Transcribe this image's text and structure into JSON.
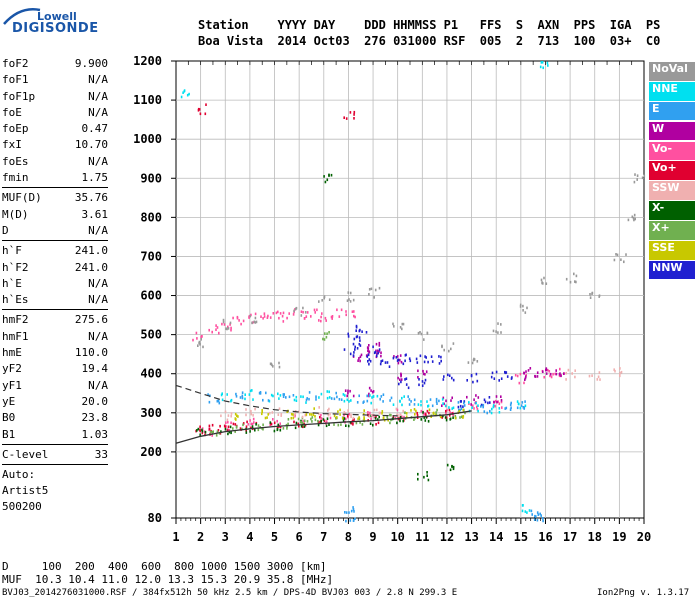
{
  "logo": {
    "top": "Lowell",
    "main": "DIGISONDE"
  },
  "header": {
    "line1": "Station    YYYY DAY    DDD HHMMSS P1   FFS  S  AXN  PPS  IGA  PS",
    "line2": "Boa Vista  2014 Oct03  276 031000 RSF  005  2  713  100  03+  C0"
  },
  "params": {
    "group1": [
      [
        "foF2",
        "9.900"
      ],
      [
        "foF1",
        "N/A"
      ],
      [
        "foF1p",
        "N/A"
      ],
      [
        "foE",
        "N/A"
      ],
      [
        "foEp",
        "0.47"
      ],
      [
        "fxI",
        "10.70"
      ],
      [
        "foEs",
        "N/A"
      ],
      [
        "fmin",
        "1.75"
      ]
    ],
    "group2": [
      [
        "MUF(D)",
        "35.76"
      ],
      [
        "M(D)",
        "3.61"
      ],
      [
        "D",
        "N/A"
      ]
    ],
    "group3": [
      [
        "h`F",
        "241.0"
      ],
      [
        "h`F2",
        "241.0"
      ],
      [
        "h`E",
        "N/A"
      ],
      [
        "h`Es",
        "N/A"
      ]
    ],
    "group4": [
      [
        "hmF2",
        "275.6"
      ],
      [
        "hmF1",
        "N/A"
      ],
      [
        "hmE",
        "110.0"
      ],
      [
        "yF2",
        "19.4"
      ],
      [
        "yF1",
        "N/A"
      ],
      [
        "yE",
        "20.0"
      ],
      [
        "B0",
        "23.8"
      ],
      [
        "B1",
        "1.03"
      ]
    ],
    "group5": [
      [
        "C-level",
        "33"
      ]
    ],
    "auto": [
      "Auto:",
      "Artist5",
      "500200"
    ]
  },
  "legend": [
    {
      "label": "NoVal",
      "color": "#999999"
    },
    {
      "label": "NNE",
      "color": "#00e0f0"
    },
    {
      "label": "E",
      "color": "#30a0f0"
    },
    {
      "label": "W",
      "color": "#b000a0"
    },
    {
      "label": "Vo-",
      "color": "#ff50a0"
    },
    {
      "label": "Vo+",
      "color": "#e00030"
    },
    {
      "label": "SSW",
      "color": "#f0b0b0"
    },
    {
      "label": "X-",
      "color": "#006000"
    },
    {
      "label": "X+",
      "color": "#70b050"
    },
    {
      "label": "SSE",
      "color": "#c8c800"
    },
    {
      "label": "NNW",
      "color": "#2020d0"
    }
  ],
  "footer": {
    "line1": "D     100  200  400  600  800 1000 1500 3000 [km]",
    "line2": "MUF  10.3 10.4 11.0 12.0 13.3 15.3 20.9 35.8 [MHz]",
    "line3": "BVJ03_2014276031000.RSF / 384fx512h 50 kHz 2.5 km / DPS-4D BVJ03 003 / 2.8 N 299.3 E",
    "version": "Ion2Png v. 1.3.17"
  },
  "chart_data": {
    "type": "scatter",
    "x_ticks": [
      "1",
      "2",
      "3",
      "4",
      "5",
      "6",
      "7",
      "8",
      "9",
      "10",
      "11",
      "12",
      "13",
      "14",
      "15",
      "16",
      "17",
      "18",
      "19",
      "20"
    ],
    "y_ticks": [
      "80",
      "200",
      "300",
      "400",
      "500",
      "600",
      "700",
      "800",
      "900",
      "1000",
      "1100",
      "1200"
    ],
    "xlim": [
      1,
      20
    ],
    "ylim": [
      80,
      1200
    ],
    "grid": true,
    "legend_position": "right",
    "series": [
      {
        "name": "Vo-",
        "color": "#ff50a0",
        "points": [
          [
            1.9,
            500
          ],
          [
            2.5,
            515
          ],
          [
            3,
            525
          ],
          [
            3.5,
            540
          ],
          [
            4,
            545
          ],
          [
            4.5,
            550
          ],
          [
            5,
            555
          ],
          [
            5.5,
            548
          ],
          [
            6,
            555
          ],
          [
            6.5,
            560
          ],
          [
            7,
            550
          ],
          [
            7.5,
            555
          ],
          [
            8,
            560
          ],
          [
            2.2,
            258
          ],
          [
            3,
            270
          ],
          [
            4,
            275
          ],
          [
            5,
            280
          ],
          [
            6,
            285
          ],
          [
            7,
            288
          ],
          [
            8,
            290
          ],
          [
            9,
            292
          ],
          [
            10,
            300
          ],
          [
            11,
            305
          ],
          [
            12,
            310
          ],
          [
            13,
            320
          ],
          [
            14,
            325
          ],
          [
            15,
            390
          ],
          [
            16,
            400
          ],
          [
            16.5,
            405
          ]
        ]
      },
      {
        "name": "W",
        "color": "#b000a0",
        "points": [
          [
            8.3,
            440
          ],
          [
            8.6,
            460
          ],
          [
            9,
            470
          ],
          [
            9.3,
            450
          ],
          [
            10,
            400
          ],
          [
            11,
            400
          ],
          [
            12,
            330
          ],
          [
            13,
            335
          ],
          [
            14,
            340
          ],
          [
            15,
            400
          ],
          [
            15.5,
            405
          ],
          [
            16,
            410
          ],
          [
            16.5,
            405
          ],
          [
            8,
            350
          ],
          [
            9,
            355
          ],
          [
            10,
            440
          ]
        ]
      },
      {
        "name": "NNW",
        "color": "#2020d0",
        "points": [
          [
            8,
            460
          ],
          [
            8.3,
            480
          ],
          [
            8.7,
            440
          ],
          [
            9,
            460
          ],
          [
            9.5,
            430
          ],
          [
            10,
            440
          ],
          [
            10.5,
            445
          ],
          [
            11,
            440
          ],
          [
            11.5,
            435
          ],
          [
            10.2,
            380
          ],
          [
            11,
            385
          ],
          [
            12,
            388
          ],
          [
            13,
            390
          ],
          [
            14,
            395
          ],
          [
            14.5,
            400
          ],
          [
            12.5,
            330
          ],
          [
            13.5,
            335
          ],
          [
            8.2,
            500
          ],
          [
            8.5,
            520
          ]
        ]
      },
      {
        "name": "Vo+",
        "color": "#e00030",
        "points": [
          [
            2,
            255
          ],
          [
            2.5,
            260
          ],
          [
            3,
            262
          ],
          [
            3.5,
            265
          ],
          [
            4,
            268
          ],
          [
            5,
            272
          ],
          [
            6,
            276
          ],
          [
            7,
            280
          ],
          [
            8,
            283
          ],
          [
            9,
            286
          ],
          [
            10,
            290
          ],
          [
            11,
            295
          ],
          [
            12,
            300
          ],
          [
            8,
            1060
          ],
          [
            2,
            1080
          ]
        ]
      },
      {
        "name": "X-",
        "color": "#006000",
        "points": [
          [
            2,
            250
          ],
          [
            3,
            258
          ],
          [
            4,
            262
          ],
          [
            5,
            268
          ],
          [
            6,
            274
          ],
          [
            7,
            278
          ],
          [
            8,
            282
          ],
          [
            9,
            284
          ],
          [
            10,
            288
          ],
          [
            11,
            292
          ],
          [
            12,
            296
          ],
          [
            7.2,
            900
          ],
          [
            11,
            160
          ],
          [
            12,
            170
          ]
        ]
      },
      {
        "name": "X+",
        "color": "#70b050",
        "points": [
          [
            2.5,
            255
          ],
          [
            3.5,
            263
          ],
          [
            4.5,
            268
          ],
          [
            5.5,
            274
          ],
          [
            6.5,
            280
          ],
          [
            7.5,
            283
          ],
          [
            8.5,
            286
          ],
          [
            9.5,
            290
          ],
          [
            10.5,
            294
          ],
          [
            11.5,
            298
          ],
          [
            12.5,
            302
          ],
          [
            6,
            280
          ],
          [
            7,
            500
          ]
        ]
      },
      {
        "name": "NNE",
        "color": "#00e0f0",
        "points": [
          [
            3,
            345
          ],
          [
            4,
            348
          ],
          [
            5,
            345
          ],
          [
            6,
            342
          ],
          [
            7,
            345
          ],
          [
            8,
            343
          ],
          [
            9,
            340
          ],
          [
            10,
            335
          ],
          [
            11,
            330
          ],
          [
            12,
            325
          ],
          [
            13,
            320
          ],
          [
            14,
            310
          ],
          [
            15,
            320
          ],
          [
            16,
            1190
          ],
          [
            15.2,
            100
          ],
          [
            1.4,
            1120
          ]
        ]
      },
      {
        "name": "E",
        "color": "#30a0f0",
        "points": [
          [
            2.5,
            340
          ],
          [
            3.5,
            346
          ],
          [
            4.5,
            345
          ],
          [
            5.5,
            344
          ],
          [
            6.5,
            343
          ],
          [
            7.5,
            345
          ],
          [
            8.5,
            342
          ],
          [
            9.5,
            338
          ],
          [
            10.5,
            333
          ],
          [
            11.5,
            330
          ],
          [
            12.5,
            322
          ],
          [
            13.5,
            315
          ],
          [
            14.5,
            320
          ],
          [
            15,
            325
          ],
          [
            15.7,
            85
          ],
          [
            15.6,
            90
          ],
          [
            8,
            85
          ],
          [
            8,
            95
          ]
        ]
      },
      {
        "name": "SSW",
        "color": "#f0b0b0",
        "points": [
          [
            3,
            295
          ],
          [
            4,
            300
          ],
          [
            5,
            305
          ],
          [
            6,
            305
          ],
          [
            7,
            308
          ],
          [
            8,
            300
          ],
          [
            9,
            300
          ],
          [
            10,
            305
          ],
          [
            17,
            400
          ],
          [
            18,
            400
          ],
          [
            19,
            405
          ]
        ]
      },
      {
        "name": "SSE",
        "color": "#c8c800",
        "points": [
          [
            3.5,
            295
          ],
          [
            4.5,
            298
          ],
          [
            5.5,
            300
          ],
          [
            6.5,
            302
          ],
          [
            7.5,
            300
          ],
          [
            8.5,
            298
          ],
          [
            9.5,
            295
          ],
          [
            10.5,
            300
          ],
          [
            11.5,
            303
          ],
          [
            12.5,
            300
          ]
        ]
      },
      {
        "name": "NoVal",
        "color": "#999999",
        "points": [
          [
            2,
            480
          ],
          [
            3,
            530
          ],
          [
            4,
            540
          ],
          [
            5,
            420
          ],
          [
            6,
            560
          ],
          [
            7,
            590
          ],
          [
            8,
            600
          ],
          [
            9,
            610
          ],
          [
            10,
            520
          ],
          [
            11,
            500
          ],
          [
            12,
            470
          ],
          [
            13,
            440
          ],
          [
            14,
            520
          ],
          [
            15,
            570
          ],
          [
            16,
            640
          ],
          [
            17,
            650
          ],
          [
            18,
            600
          ],
          [
            19,
            700
          ],
          [
            19.5,
            800
          ],
          [
            19.8,
            900
          ]
        ]
      }
    ]
  }
}
